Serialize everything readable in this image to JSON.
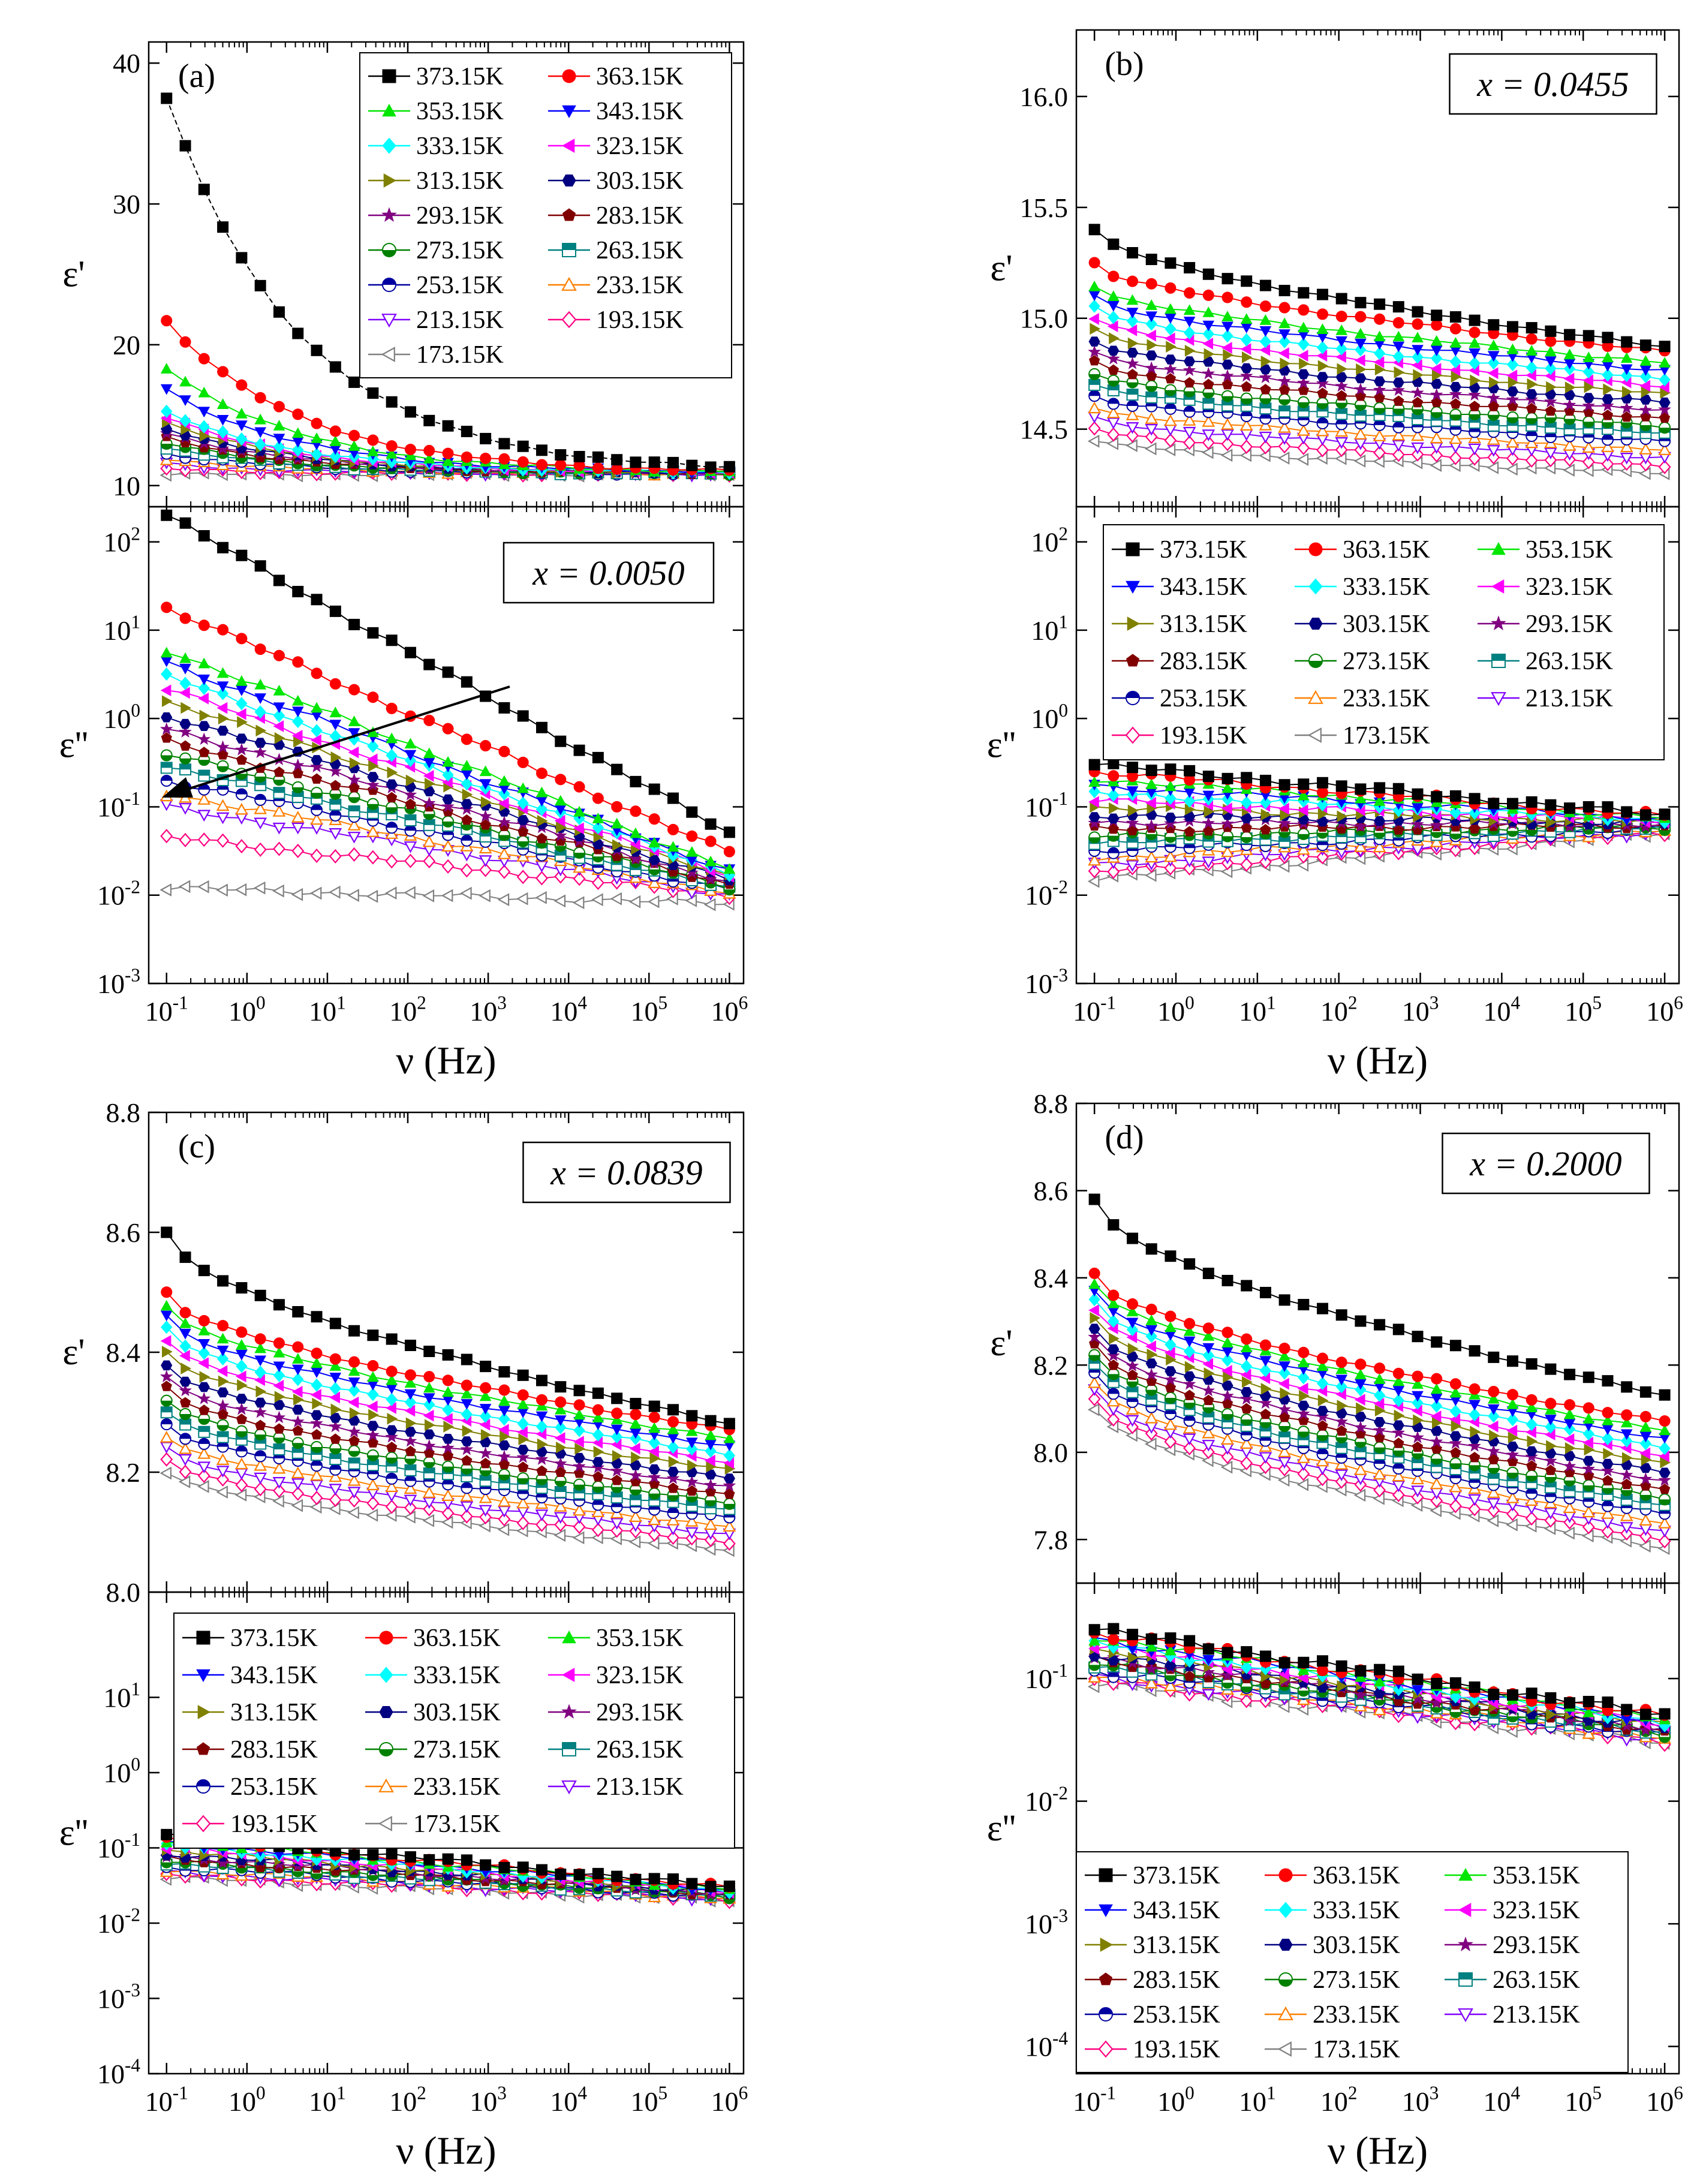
{
  "figure": {
    "x_label": "ν  (Hz)"
  },
  "temperatures": [
    "373.15K",
    "363.15K",
    "353.15K",
    "343.15K",
    "333.15K",
    "323.15K",
    "313.15K",
    "303.15K",
    "293.15K",
    "283.15K",
    "273.15K",
    "263.15K",
    "253.15K",
    "233.15K",
    "213.15K",
    "193.15K",
    "173.15K"
  ],
  "series_style": [
    {
      "color": "#000000",
      "marker": "square"
    },
    {
      "color": "#ff0000",
      "marker": "circle"
    },
    {
      "color": "#00e600",
      "marker": "triangle-up"
    },
    {
      "color": "#0000ff",
      "marker": "triangle-down"
    },
    {
      "color": "#00ffff",
      "marker": "diamond"
    },
    {
      "color": "#ff00ff",
      "marker": "triangle-left"
    },
    {
      "color": "#808000",
      "marker": "triangle-right"
    },
    {
      "color": "#000080",
      "marker": "hexagon"
    },
    {
      "color": "#800080",
      "marker": "star"
    },
    {
      "color": "#800000",
      "marker": "pentagon"
    },
    {
      "color": "#008000",
      "marker": "half-circle"
    },
    {
      "color": "#008080",
      "marker": "half-square"
    },
    {
      "color": "#0000a0",
      "marker": "half-circle-open"
    },
    {
      "color": "#ff8000",
      "marker": "open-triangle-up"
    },
    {
      "color": "#8000ff",
      "marker": "open-triangle-down"
    },
    {
      "color": "#ff0080",
      "marker": "open-diamond"
    },
    {
      "color": "#808080",
      "marker": "open-triangle-left"
    }
  ],
  "chart_data": [
    {
      "panel": "a",
      "type": "line",
      "quantity": "ε'",
      "letter": "(a)",
      "xscale": "log",
      "yscale": "linear",
      "xlim": [
        0.06,
        1500000
      ],
      "ylim": [
        8.5,
        41.5
      ],
      "yticks": [
        "10",
        "20",
        "30",
        "40"
      ],
      "xticks": [
        "10-1",
        "100",
        "101",
        "102",
        "103",
        "104",
        "105",
        "106"
      ],
      "x": [
        0.1,
        1000000
      ],
      "series": [
        {
          "name": "373.15K",
          "eps_low": 37.5,
          "eps_high": 10.9
        },
        {
          "name": "363.15K",
          "eps_low": 21.7,
          "eps_high": 10.9
        },
        {
          "name": "353.15K",
          "eps_low": 18.4,
          "eps_high": 10.9
        },
        {
          "name": "343.15K",
          "eps_low": 16.8,
          "eps_high": 10.9
        },
        {
          "name": "333.15K",
          "eps_low": 15.2,
          "eps_high": 10.9
        },
        {
          "name": "173.15K",
          "eps_low": 10.8,
          "eps_high": 10.8
        }
      ],
      "legend": {
        "position": "top-right",
        "columns": 2
      }
    },
    {
      "panel": "a",
      "type": "line",
      "quantity": "ε''",
      "annotation": "x = 0.0050",
      "xscale": "log",
      "yscale": "log",
      "xlim": [
        0.06,
        1500000
      ],
      "ylim": [
        0.001,
        250
      ],
      "yticks": [
        "10-3",
        "10-2",
        "10-1",
        "100",
        "101",
        "102"
      ],
      "xticks": [
        "10-1",
        "100",
        "101",
        "102",
        "103",
        "104",
        "105",
        "106"
      ],
      "series": [
        {
          "name": "373.15K",
          "eps_low": 200,
          "eps_high": 0.05
        },
        {
          "name": "363.15K",
          "eps_low": 18,
          "eps_high": 0.03
        },
        {
          "name": "353.15K",
          "eps_low": 6,
          "eps_high": 0.02
        },
        {
          "name": "213.15K",
          "eps_low": 0.1,
          "eps_high": 0.01
        },
        {
          "name": "193.15K",
          "eps_low": 0.045,
          "eps_high": 0.01
        },
        {
          "name": "173.15K",
          "eps_low": 0.012,
          "eps_high": 0.008
        }
      ],
      "arrow": "temperature trend"
    },
    {
      "panel": "b",
      "type": "line",
      "quantity": "ε'",
      "letter": "(b)",
      "annotation": "x = 0.0455",
      "xscale": "log",
      "yscale": "linear",
      "xlim": [
        0.06,
        1500000
      ],
      "ylim": [
        14.15,
        16.3
      ],
      "yticks": [
        "14.5",
        "15.0",
        "15.5",
        "16.0"
      ],
      "xticks": [
        "10-1",
        "100",
        "101",
        "102",
        "103",
        "104",
        "105",
        "106"
      ],
      "series": [
        {
          "name": "373.15K",
          "eps_low": 15.4,
          "eps_high": 14.87
        },
        {
          "name": "363.15K",
          "eps_low": 15.25,
          "eps_high": 14.85
        },
        {
          "name": "353.15K",
          "eps_low": 15.15,
          "eps_high": 14.8
        },
        {
          "name": "173.15K",
          "eps_low": 14.45,
          "eps_high": 14.3
        }
      ]
    },
    {
      "panel": "b",
      "type": "line",
      "quantity": "ε''",
      "xscale": "log",
      "yscale": "log",
      "xlim": [
        0.06,
        1500000
      ],
      "ylim": [
        0.001,
        250
      ],
      "yticks": [
        "10-3",
        "10-2",
        "10-1",
        "100",
        "101",
        "102"
      ],
      "xticks": [
        "10-1",
        "100",
        "101",
        "102",
        "103",
        "104",
        "105",
        "106"
      ],
      "series": [
        {
          "name": "373.15K",
          "eps_low": 0.3,
          "eps_high": 0.08
        },
        {
          "name": "173.15K",
          "eps_low": 0.015,
          "eps_high": 0.05
        }
      ],
      "legend": {
        "position": "top",
        "columns": 3
      }
    },
    {
      "panel": "c",
      "type": "line",
      "quantity": "ε'",
      "letter": "(c)",
      "annotation": "x = 0.0839",
      "xscale": "log",
      "yscale": "linear",
      "xlim": [
        0.06,
        1500000
      ],
      "ylim": [
        8.0,
        8.8
      ],
      "yticks": [
        "8.0",
        "8.2",
        "8.4",
        "8.6",
        "8.8"
      ],
      "xticks": [
        "10-1",
        "100",
        "101",
        "102",
        "103",
        "104",
        "105",
        "106"
      ],
      "series": [
        {
          "name": "373.15K",
          "eps_low": 8.6,
          "eps_high": 8.28
        },
        {
          "name": "363.15K",
          "eps_low": 8.5,
          "eps_high": 8.27
        },
        {
          "name": "173.15K",
          "eps_low": 8.2,
          "eps_high": 8.07
        }
      ]
    },
    {
      "panel": "c",
      "type": "line",
      "quantity": "ε''",
      "xscale": "log",
      "yscale": "log",
      "xlim": [
        0.06,
        1500000
      ],
      "ylim": [
        0.0001,
        250
      ],
      "yticks": [
        "10-4",
        "10-3",
        "10-2",
        "10-1",
        "100",
        "101"
      ],
      "xticks": [
        "10-1",
        "100",
        "101",
        "102",
        "103",
        "104",
        "105",
        "106"
      ],
      "series": [
        {
          "name": "373.15K",
          "eps_low": 0.15,
          "eps_high": 0.03
        },
        {
          "name": "173.15K",
          "eps_low": 0.04,
          "eps_high": 0.02
        }
      ],
      "legend": {
        "position": "top",
        "columns": 3
      }
    },
    {
      "panel": "d",
      "type": "line",
      "quantity": "ε'",
      "letter": "(d)",
      "annotation": "x = 0.2000",
      "xscale": "log",
      "yscale": "linear",
      "xlim": [
        0.06,
        1500000
      ],
      "ylim": [
        7.7,
        8.8
      ],
      "yticks": [
        "7.8",
        "8.0",
        "8.2",
        "8.4",
        "8.6",
        "8.8"
      ],
      "xticks": [
        "10-1",
        "100",
        "101",
        "102",
        "103",
        "104",
        "105",
        "106"
      ],
      "series": [
        {
          "name": "373.15K",
          "eps_low": 8.58,
          "eps_high": 8.13
        },
        {
          "name": "363.15K",
          "eps_low": 8.41,
          "eps_high": 8.07
        },
        {
          "name": "173.15K",
          "eps_low": 8.1,
          "eps_high": 7.78
        }
      ]
    },
    {
      "panel": "d",
      "type": "line",
      "quantity": "ε''",
      "xscale": "log",
      "yscale": "log",
      "xlim": [
        0.06,
        1500000
      ],
      "ylim": [
        6e-05,
        0.6
      ],
      "yticks": [
        "10-4",
        "10-3",
        "10-2",
        "10-1"
      ],
      "xticks": [
        "10-1",
        "100",
        "101",
        "102",
        "103",
        "104",
        "105",
        "106"
      ],
      "series": [
        {
          "name": "373.15K",
          "eps_low": 0.25,
          "eps_high": 0.05
        },
        {
          "name": "173.15K",
          "eps_low": 0.09,
          "eps_high": 0.03
        }
      ],
      "legend": {
        "position": "bottom-left",
        "columns": 3
      }
    }
  ]
}
